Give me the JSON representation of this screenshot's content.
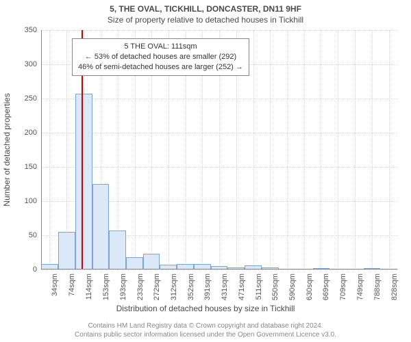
{
  "title_line1": "5, THE OVAL, TICKHILL, DONCASTER, DN11 9HF",
  "title_line2": "Size of property relative to detached houses in Tickhill",
  "yaxis_label": "Number of detached properties",
  "xaxis_label": "Distribution of detached houses by size in Tickhill",
  "chart": {
    "type": "histogram",
    "ylim": [
      0,
      350
    ],
    "yticks": [
      0,
      50,
      100,
      150,
      200,
      250,
      300,
      350
    ],
    "x_domain_sqm": [
      14,
      848
    ],
    "xticks_sqm": [
      34,
      74,
      114,
      153,
      193,
      233,
      272,
      312,
      352,
      391,
      431,
      471,
      511,
      550,
      590,
      630,
      669,
      709,
      749,
      788,
      828
    ],
    "xtick_unit_suffix": "sqm",
    "bars": [
      {
        "x_start": 14,
        "x_end": 54,
        "value": 8
      },
      {
        "x_start": 54,
        "x_end": 94,
        "value": 55
      },
      {
        "x_start": 94,
        "x_end": 134,
        "value": 257
      },
      {
        "x_start": 134,
        "x_end": 173,
        "value": 125
      },
      {
        "x_start": 173,
        "x_end": 213,
        "value": 57
      },
      {
        "x_start": 213,
        "x_end": 253,
        "value": 18
      },
      {
        "x_start": 253,
        "x_end": 292,
        "value": 23
      },
      {
        "x_start": 292,
        "x_end": 332,
        "value": 7
      },
      {
        "x_start": 332,
        "x_end": 372,
        "value": 8
      },
      {
        "x_start": 372,
        "x_end": 411,
        "value": 8
      },
      {
        "x_start": 411,
        "x_end": 451,
        "value": 5
      },
      {
        "x_start": 451,
        "x_end": 491,
        "value": 3
      },
      {
        "x_start": 491,
        "x_end": 531,
        "value": 6
      },
      {
        "x_start": 531,
        "x_end": 570,
        "value": 3
      },
      {
        "x_start": 570,
        "x_end": 610,
        "value": 0
      },
      {
        "x_start": 610,
        "x_end": 650,
        "value": 0
      },
      {
        "x_start": 650,
        "x_end": 689,
        "value": 1
      },
      {
        "x_start": 689,
        "x_end": 729,
        "value": 0
      },
      {
        "x_start": 729,
        "x_end": 769,
        "value": 0
      },
      {
        "x_start": 769,
        "x_end": 808,
        "value": 1
      },
      {
        "x_start": 808,
        "x_end": 848,
        "value": 0
      }
    ],
    "bar_fill": "#dbe8f8",
    "bar_border": "#7aa6d6",
    "grid_color": "#d6d6d6",
    "background_color": "#ffffff",
    "marker": {
      "x_sqm": 111,
      "color": "#cc0000"
    }
  },
  "annotation": {
    "line1": "5 THE OVAL: 111sqm",
    "line2": "← 53% of detached houses are smaller (292)",
    "line3": "46% of semi-detached houses are larger (252) →"
  },
  "footer_line1": "Contains HM Land Registry data © Crown copyright and database right 2024.",
  "footer_line2": "Contains public sector information licensed under the Open Government Licence v3.0."
}
